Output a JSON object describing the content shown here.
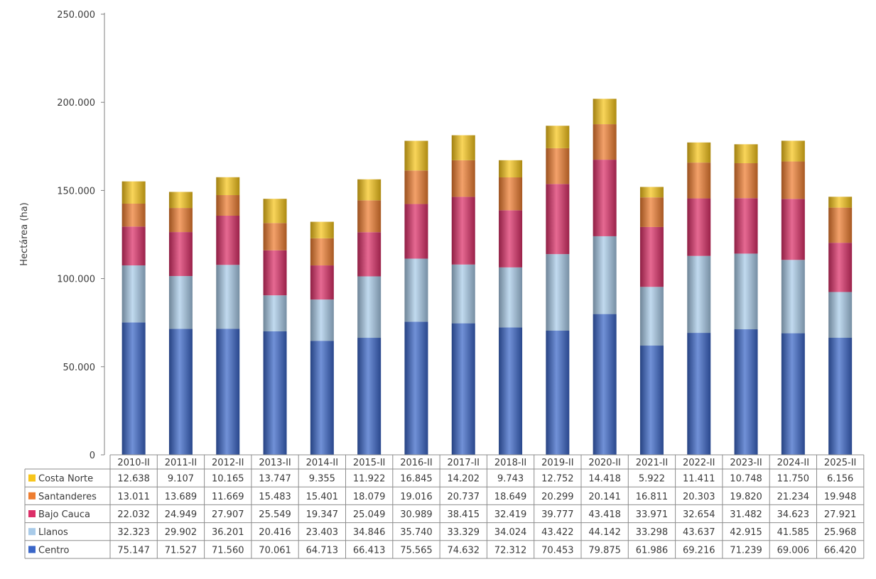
{
  "chart_data": {
    "type": "bar",
    "stacked": true,
    "title": "",
    "xlabel": "",
    "ylabel": "Hectárea (ha)",
    "ylim": [
      0,
      250000
    ],
    "yticks": [
      "0",
      "50.000",
      "100.000",
      "150.000",
      "200.000",
      "250.000"
    ],
    "ytick_values": [
      0,
      50000,
      100000,
      150000,
      200000,
      250000
    ],
    "categories": [
      "2010-II",
      "2011-II",
      "2012-II",
      "2013-II",
      "2014-II",
      "2015-II",
      "2016-II",
      "2017-II",
      "2018-II",
      "2019-II",
      "2020-II",
      "2021-II",
      "2022-II",
      "2023-II",
      "2024-II",
      "2025-II"
    ],
    "series": [
      {
        "name": "Centro",
        "color": "#3a66c8",
        "values": [
          75147,
          71527,
          71560,
          70061,
          64713,
          66413,
          75565,
          74632,
          72312,
          70453,
          79875,
          61986,
          69216,
          71239,
          69006,
          66420
        ],
        "labels": [
          "75.147",
          "71.527",
          "71.560",
          "70.061",
          "64.713",
          "66.413",
          "75.565",
          "74.632",
          "72.312",
          "70.453",
          "79.875",
          "61.986",
          "69.216",
          "71.239",
          "69.006",
          "66.420"
        ]
      },
      {
        "name": "Llanos",
        "color": "#a9cbe9",
        "values": [
          32323,
          29902,
          36201,
          20416,
          23403,
          34846,
          35740,
          33329,
          34024,
          43422,
          44142,
          33298,
          43637,
          42915,
          41585,
          25968
        ],
        "labels": [
          "32.323",
          "29.902",
          "36.201",
          "20.416",
          "23.403",
          "34.846",
          "35.740",
          "33.329",
          "34.024",
          "43.422",
          "44.142",
          "33.298",
          "43.637",
          "42.915",
          "41.585",
          "25.968"
        ]
      },
      {
        "name": "Bajo Cauca",
        "color": "#dc2f68",
        "values": [
          22032,
          24949,
          27907,
          25549,
          19347,
          25049,
          30989,
          38415,
          32419,
          39777,
          43418,
          33971,
          32654,
          31482,
          34623,
          27921
        ],
        "labels": [
          "22.032",
          "24.949",
          "27.907",
          "25.549",
          "19.347",
          "25.049",
          "30.989",
          "38.415",
          "32.419",
          "39.777",
          "43.418",
          "33.971",
          "32.654",
          "31.482",
          "34.623",
          "27.921"
        ]
      },
      {
        "name": "Santanderes",
        "color": "#ee7d30",
        "values": [
          13011,
          13689,
          11669,
          15483,
          15401,
          18079,
          19016,
          20737,
          18649,
          20299,
          20141,
          16811,
          20303,
          19820,
          21234,
          19948
        ],
        "labels": [
          "13.011",
          "13.689",
          "11.669",
          "15.483",
          "15.401",
          "18.079",
          "19.016",
          "20.737",
          "18.649",
          "20.299",
          "20.141",
          "16.811",
          "20.303",
          "19.820",
          "21.234",
          "19.948"
        ]
      },
      {
        "name": "Costa Norte",
        "color": "#f7c51a",
        "values": [
          12638,
          9107,
          10165,
          13747,
          9355,
          11922,
          16845,
          14202,
          9743,
          12752,
          14418,
          5922,
          11411,
          10748,
          11750,
          6156
        ],
        "labels": [
          "12.638",
          "9.107",
          "10.165",
          "13.747",
          "9.355",
          "11.922",
          "16.845",
          "14.202",
          "9.743",
          "12.752",
          "14.418",
          "5.922",
          "11.411",
          "10.748",
          "11.750",
          "6.156"
        ]
      }
    ],
    "table_row_order": [
      "Costa Norte",
      "Santanderes",
      "Bajo Cauca",
      "Llanos",
      "Centro"
    ],
    "grid": false,
    "legend": "data-table"
  }
}
